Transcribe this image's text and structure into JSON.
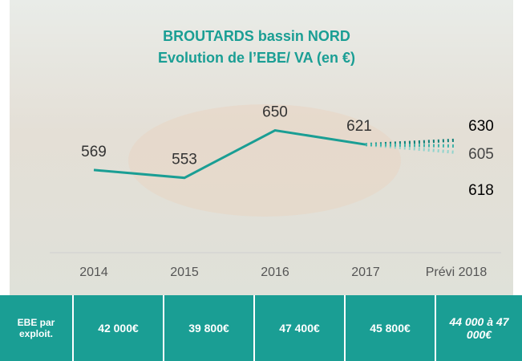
{
  "chart_data": {
    "type": "line",
    "title": "BROUTARDS bassin NORD",
    "subtitle": "Evolution de l’EBE/ VA (en €)",
    "categories": [
      "2014",
      "2015",
      "2016",
      "2017",
      "Prévi 2018"
    ],
    "ylim": [
      500,
      700
    ],
    "series": [
      {
        "color": "#1a9e94",
        "dash": false,
        "values": [
          569,
          553,
          650,
          621,
          null
        ]
      },
      {
        "color": "#0f7f78",
        "dash": true,
        "values": [
          null,
          null,
          null,
          621,
          630
        ]
      },
      {
        "color": "#8fd3cc",
        "dash": true,
        "values": [
          null,
          null,
          null,
          621,
          605
        ]
      },
      {
        "color": "#3fb3a9",
        "dash": true,
        "values": [
          null,
          null,
          null,
          621,
          618
        ]
      }
    ],
    "label_colors": [
      "#333333",
      "#000000",
      "#444444",
      "#000000"
    ]
  },
  "table": {
    "label": "EBE par exploit.",
    "values": [
      "42 000€",
      "39 800€",
      "47 400€",
      "45 800€",
      "44 000 à 47 000€"
    ]
  }
}
